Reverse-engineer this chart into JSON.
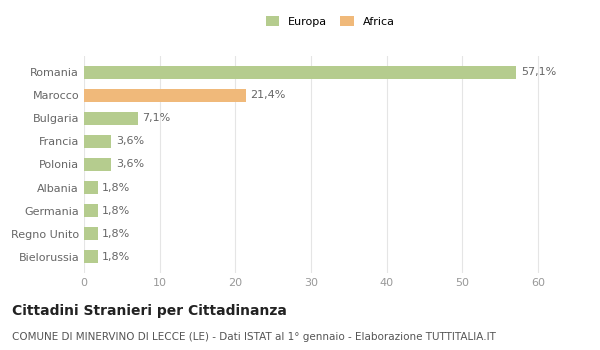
{
  "categories": [
    "Romania",
    "Marocco",
    "Bulgaria",
    "Francia",
    "Polonia",
    "Albania",
    "Germania",
    "Regno Unito",
    "Bielorussia"
  ],
  "values": [
    57.1,
    21.4,
    7.1,
    3.6,
    3.6,
    1.8,
    1.8,
    1.8,
    1.8
  ],
  "labels": [
    "57,1%",
    "21,4%",
    "7,1%",
    "3,6%",
    "3,6%",
    "1,8%",
    "1,8%",
    "1,8%",
    "1,8%"
  ],
  "colors": [
    "#b5cc8e",
    "#f0b97a",
    "#b5cc8e",
    "#b5cc8e",
    "#b5cc8e",
    "#b5cc8e",
    "#b5cc8e",
    "#b5cc8e",
    "#b5cc8e"
  ],
  "legend": [
    {
      "label": "Europa",
      "color": "#b5cc8e"
    },
    {
      "label": "Africa",
      "color": "#f0b97a"
    }
  ],
  "xlim": [
    0,
    65
  ],
  "xticks": [
    0,
    10,
    20,
    30,
    40,
    50,
    60
  ],
  "title_bold": "Cittadini Stranieri per Cittadinanza",
  "subtitle": "COMUNE DI MINERVINO DI LECCE (LE) - Dati ISTAT al 1° gennaio - Elaborazione TUTTITALIA.IT",
  "background_color": "#ffffff",
  "grid_color": "#e5e5e5",
  "bar_height": 0.55,
  "title_fontsize": 10,
  "subtitle_fontsize": 7.5,
  "label_fontsize": 8,
  "tick_fontsize": 8
}
